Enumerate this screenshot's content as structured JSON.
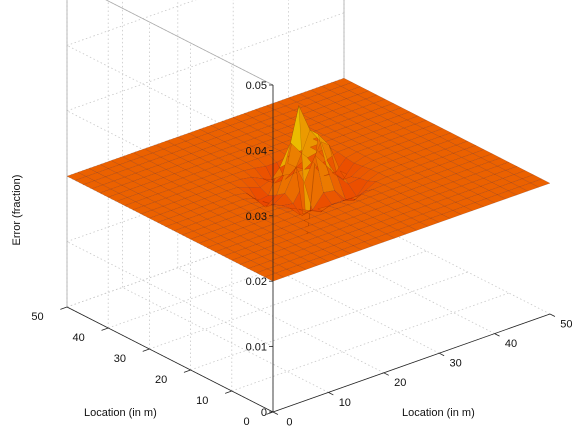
{
  "chart_data": {
    "type": "surface",
    "title": "",
    "xlabel": "Location (in m)",
    "ylabel": "Location (in m)",
    "zlabel": "Error (fraction)",
    "x_ticks": [
      "0",
      "10",
      "20",
      "30",
      "40",
      "50"
    ],
    "y_ticks": [
      "0",
      "10",
      "20",
      "30",
      "40",
      "50"
    ],
    "z_ticks": [
      "0",
      "0.01",
      "0.02",
      "0.03",
      "0.04",
      "0.05"
    ],
    "xlim": [
      0,
      50
    ],
    "ylim": [
      0,
      50
    ],
    "zlim": [
      0,
      0.05
    ],
    "grid": true,
    "colormap": "hot",
    "surface": {
      "baseline_error": 0.02,
      "peak_error": 0.035,
      "peak_location": [
        25,
        25
      ],
      "ring_dip_error": 0.017,
      "spike_min_error": 0.0,
      "spike_location": [
        24,
        24
      ]
    }
  }
}
